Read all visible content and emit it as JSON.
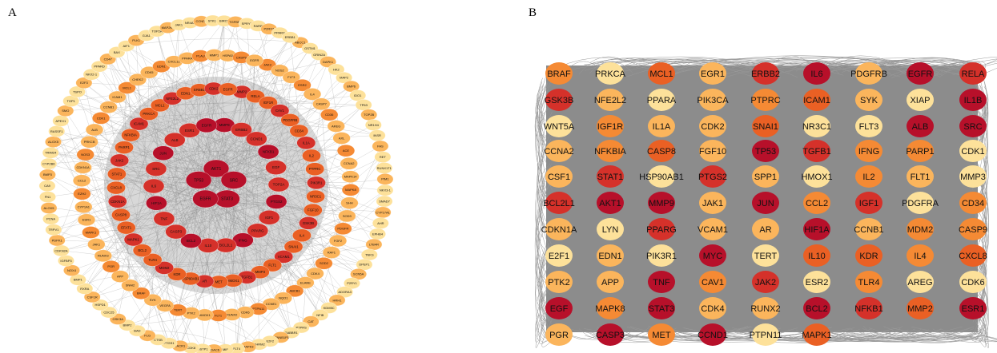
{
  "panels": {
    "a_label": "A",
    "b_label": "B"
  },
  "colors": {
    "edge": "#8a8a8a",
    "panel_b_background": "#8c8c8c",
    "node_tiers": [
      "#b7102a",
      "#d5312a",
      "#ea6024",
      "#f58a34",
      "#fbb55c",
      "#fde19a"
    ]
  },
  "panel_a": {
    "rings": [
      [
        "AKT1",
        "SRC",
        "STAT3",
        "EGFR",
        "TP53"
      ],
      [
        "MMP9",
        "ERBB2",
        "CCND1",
        "NFKB1",
        "EGF",
        "TOP2A",
        "PTGS2",
        "IGF1",
        "PPARG",
        "IFNG",
        "BCL2L1",
        "IL10",
        "BCL2",
        "CASP3",
        "TNF",
        "HIF1A",
        "IL6",
        "SRC",
        "JUN",
        "ALB",
        "ESR1",
        "EGFR"
      ],
      [
        "MMP2",
        "RELA",
        "IGF1R",
        "CAV1",
        "PDGFRB",
        "CD34",
        "IL1A",
        "IL2",
        "PTPRC",
        "PIK3R1",
        "NR3C1",
        "FGF10",
        "GSK3B",
        "IL4",
        "SNAI1",
        "VCAM1",
        "FLT1",
        "MMP3",
        "TGFB1",
        "HMOX1",
        "MET",
        "AR",
        "HSP90AB1",
        "KDR",
        "MDM2",
        "TLR4",
        "BCL2",
        "MAPK1",
        "EFAT1",
        "CASP8",
        "CDKN1A",
        "CXCL8",
        "STAT1",
        "JAK2",
        "PARP1",
        "NFKBIA",
        "ICAM1",
        "PRKCA",
        "MCL1",
        "NFE2L2",
        "EDN1",
        "ERBB2",
        "CDK2",
        "EGFR"
      ],
      [
        "JAK3",
        "NOS2",
        "FLT3",
        "ESR2",
        "IL4",
        "CASP7",
        "CD36",
        "AREG",
        "AXL",
        "ACE",
        "CCNA2",
        "MAPK14",
        "MAPK8",
        "SHH",
        "SOD3",
        "PDGFR",
        "FGF2",
        "RAF1",
        "SOD2",
        "CDK4",
        "ELANE",
        "ABCB1",
        "NQO1",
        "CCNE1",
        "PTPN11",
        "CDK6",
        "RUNX2",
        "FLT1",
        "HMOX1",
        "PTK2",
        "TERT",
        "VEGFA",
        "SYK",
        "BRAF",
        "SNAI2",
        "APP",
        "PGR",
        "RUNX3",
        "JAK1",
        "MAPK1",
        "ESR1",
        "CYP1A1",
        "EZH2",
        "CCL2",
        "CDKN1A",
        "NOS3",
        "PRKCB",
        "ALB",
        "CDK1",
        "CCNB1",
        "ICAM1",
        "MCL1",
        "CHEK2",
        "CDK5",
        "EDN1",
        "CXCL12",
        "PPARA",
        "PLAU",
        "MMP1",
        "HSPA5",
        "CASP9",
        "EGFR"
      ],
      [
        "ABCC1",
        "GSTM1",
        "GRIN2A",
        "DAPK1",
        "HK2",
        "MAP2",
        "BMP6",
        "IDO1",
        "TP63",
        "TOP2B",
        "NR1H4",
        "INSR",
        "FAS",
        "RET",
        "RUNX1T1",
        "PIM1",
        "NKX3-1",
        "SMAD7",
        "CYP17A1",
        "AHR",
        "EPHB4",
        "LTB4R",
        "TNKS",
        "DPEP1",
        "SCN5A",
        "P2RY1",
        "ADORA3",
        "HRH1",
        "KDM5C",
        "NFIB",
        "CAT",
        "PTPRS",
        "GABBR1",
        "CTNNB1P1",
        "E2F2",
        "CHRM2",
        "MAPK3",
        "FLT4",
        "MIF",
        "HDAC6",
        "GSTP1",
        "CDK8",
        "TACR1",
        "PTGS1",
        "CTSB",
        "FLG",
        "BAD",
        "BMP2",
        "GSK3A",
        "CDC25",
        "HSPD1",
        "CSF1R",
        "RXRA",
        "BMP1",
        "NOX4",
        "IGFBP3",
        "CDKN2A",
        "PDPK1",
        "TRPV1",
        "PCNA",
        "ALOX5",
        "FN1",
        "CA9",
        "BMP3",
        "CYP2B6",
        "TRIM24",
        "ALOX5",
        "RASSF1",
        "APEX1",
        "SMO",
        "TOP1",
        "TSPO",
        "E2F3",
        "NKX2-1",
        "PPARD",
        "CD47",
        "BAX",
        "AIF1",
        "PLK1",
        "GJA1",
        "TOP2A",
        "MAP2K1",
        "JAK1",
        "NR4A1",
        "CCND2",
        "STK11",
        "BIRC5",
        "TGFBR1",
        "SPRY2",
        "RARB",
        "P2RX7",
        "PPARG",
        "ERBB1"
      ]
    ]
  },
  "panel_b": {
    "rows": [
      [
        "BRAF",
        "PRKCA",
        "MCL1",
        "EGR1",
        "ERBB2",
        "IL6",
        "PDGFRB",
        "EGFR",
        "RELA"
      ],
      [
        "GSK3B",
        "NFE2L2",
        "PPARA",
        "PIK3CA",
        "PTPRC",
        "ICAM1",
        "SYK",
        "XIAP",
        "IL1B"
      ],
      [
        "WNT5A",
        "IGF1R",
        "IL1A",
        "CDK2",
        "SNAI1",
        "NR3C1",
        "FLT3",
        "ALB",
        "SRC"
      ],
      [
        "CCNA2",
        "NFKBIA",
        "CASP8",
        "FGF10",
        "TP53",
        "TGFB1",
        "IFNG",
        "PARP1",
        "CDK1"
      ],
      [
        "CSF1",
        "STAT1",
        "HSP90AB1",
        "PTGS2",
        "SPP1",
        "HMOX1",
        "IL2",
        "FLT1",
        "MMP3"
      ],
      [
        "BCL2L1",
        "AKT1",
        "MMP9",
        "JAK1",
        "JUN",
        "CCL2",
        "IGF1",
        "PDGFRA",
        "CD34"
      ],
      [
        "CDKN1A",
        "LYN",
        "PPARG",
        "VCAM1",
        "AR",
        "HIF1A",
        "CCNB1",
        "MDM2",
        "CASP9"
      ],
      [
        "E2F1",
        "EDN1",
        "PIK3R1",
        "MYC",
        "TERT",
        "IL10",
        "KDR",
        "IL4",
        "CXCL8"
      ],
      [
        "PTK2",
        "APP",
        "TNF",
        "CAV1",
        "JAK2",
        "ESR2",
        "TLR4",
        "AREG",
        "CDK6"
      ],
      [
        "EGF",
        "MAPK8",
        "STAT3",
        "CDK4",
        "RUNX2",
        "BCL2",
        "NFKB1",
        "MMP2",
        "ESR1"
      ],
      [
        "PGR",
        "CASP3",
        "MET",
        "CCND1",
        "PTPN11",
        "MAPK1"
      ]
    ],
    "tiers": [
      [
        3,
        5,
        2,
        4,
        1,
        0,
        4,
        0,
        1
      ],
      [
        1,
        4,
        5,
        4,
        3,
        2,
        4,
        5,
        0
      ],
      [
        5,
        3,
        4,
        4,
        2,
        5,
        5,
        0,
        0
      ],
      [
        4,
        3,
        2,
        4,
        0,
        1,
        3,
        3,
        5
      ],
      [
        4,
        1,
        5,
        1,
        4,
        5,
        3,
        4,
        5
      ],
      [
        1,
        0,
        0,
        4,
        0,
        3,
        1,
        5,
        3
      ],
      [
        4,
        5,
        1,
        4,
        4,
        0,
        4,
        3,
        3
      ],
      [
        5,
        4,
        5,
        0,
        5,
        2,
        2,
        3,
        2
      ],
      [
        4,
        4,
        0,
        3,
        1,
        5,
        3,
        5,
        5
      ],
      [
        0,
        3,
        0,
        4,
        4,
        0,
        1,
        2,
        0
      ],
      [
        4,
        0,
        3,
        0,
        5,
        2
      ]
    ]
  }
}
